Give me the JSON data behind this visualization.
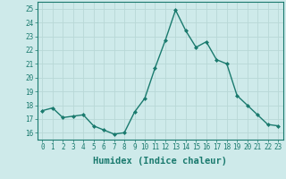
{
  "x": [
    0,
    1,
    2,
    3,
    4,
    5,
    6,
    7,
    8,
    9,
    10,
    11,
    12,
    13,
    14,
    15,
    16,
    17,
    18,
    19,
    20,
    21,
    22,
    23
  ],
  "y": [
    17.6,
    17.8,
    17.1,
    17.2,
    17.3,
    16.5,
    16.2,
    15.9,
    16.0,
    17.5,
    18.5,
    20.7,
    22.7,
    24.9,
    23.4,
    22.2,
    22.6,
    21.3,
    21.0,
    18.7,
    18.0,
    17.3,
    16.6,
    16.5
  ],
  "line_color": "#1a7a6e",
  "marker": "D",
  "marker_size": 2.0,
  "line_width": 1.0,
  "bg_color": "#ceeaea",
  "grid_color": "#b8d8d6",
  "xlabel": "Humidex (Indice chaleur)",
  "xlim": [
    -0.5,
    23.5
  ],
  "ylim": [
    15.5,
    25.5
  ],
  "yticks": [
    16,
    17,
    18,
    19,
    20,
    21,
    22,
    23,
    24,
    25
  ],
  "xticks": [
    0,
    1,
    2,
    3,
    4,
    5,
    6,
    7,
    8,
    9,
    10,
    11,
    12,
    13,
    14,
    15,
    16,
    17,
    18,
    19,
    20,
    21,
    22,
    23
  ],
  "tick_fontsize": 5.5,
  "xlabel_fontsize": 7.5,
  "xlabel_fontweight": "bold",
  "tick_color": "#1a7a6e",
  "xlabel_color": "#1a7a6e"
}
